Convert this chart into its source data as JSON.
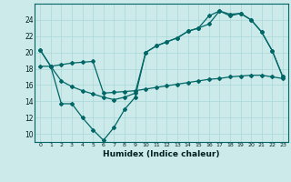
{
  "xlabel": "Humidex (Indice chaleur)",
  "background_color": "#cdeaea",
  "grid_color": "#a8d8d8",
  "line_color": "#006666",
  "xlim": [
    -0.5,
    23.5
  ],
  "ylim": [
    9,
    26
  ],
  "yticks": [
    10,
    12,
    14,
    16,
    18,
    20,
    22,
    24
  ],
  "xticks": [
    0,
    1,
    2,
    3,
    4,
    5,
    6,
    7,
    8,
    9,
    10,
    11,
    12,
    13,
    14,
    15,
    16,
    17,
    18,
    19,
    20,
    21,
    22,
    23
  ],
  "line1_x": [
    0,
    1,
    2,
    3,
    4,
    5,
    6,
    7,
    8,
    9,
    10,
    11,
    12,
    13,
    14,
    15,
    16,
    17,
    18,
    19,
    20,
    21,
    22,
    23
  ],
  "line1_y": [
    20.3,
    18.3,
    13.7,
    13.7,
    12.0,
    10.5,
    9.2,
    10.8,
    13.0,
    14.5,
    20.0,
    20.8,
    21.3,
    21.8,
    22.6,
    23.0,
    23.5,
    25.1,
    24.5,
    24.8,
    24.0,
    22.5,
    20.2,
    17.0
  ],
  "line2_x": [
    0,
    1,
    2,
    3,
    4,
    5,
    6,
    7,
    8,
    9,
    10,
    11,
    12,
    13,
    14,
    15,
    16,
    17,
    18,
    19,
    20,
    21,
    22,
    23
  ],
  "line2_y": [
    18.3,
    18.3,
    18.5,
    18.7,
    18.8,
    18.9,
    15.0,
    15.1,
    15.2,
    15.3,
    15.5,
    15.7,
    15.9,
    16.1,
    16.3,
    16.5,
    16.7,
    16.8,
    17.0,
    17.1,
    17.2,
    17.2,
    17.0,
    16.8
  ],
  "line3_x": [
    0,
    1,
    2,
    3,
    4,
    5,
    6,
    7,
    8,
    9,
    10,
    11,
    12,
    13,
    14,
    15,
    16,
    17,
    18,
    19,
    20,
    21,
    22,
    23
  ],
  "line3_y": [
    20.3,
    18.3,
    16.5,
    15.8,
    15.3,
    14.9,
    14.5,
    14.2,
    14.5,
    15.0,
    20.0,
    20.8,
    21.3,
    21.8,
    22.6,
    23.0,
    24.5,
    25.1,
    24.7,
    24.8,
    24.0,
    22.5,
    20.2,
    17.0
  ]
}
